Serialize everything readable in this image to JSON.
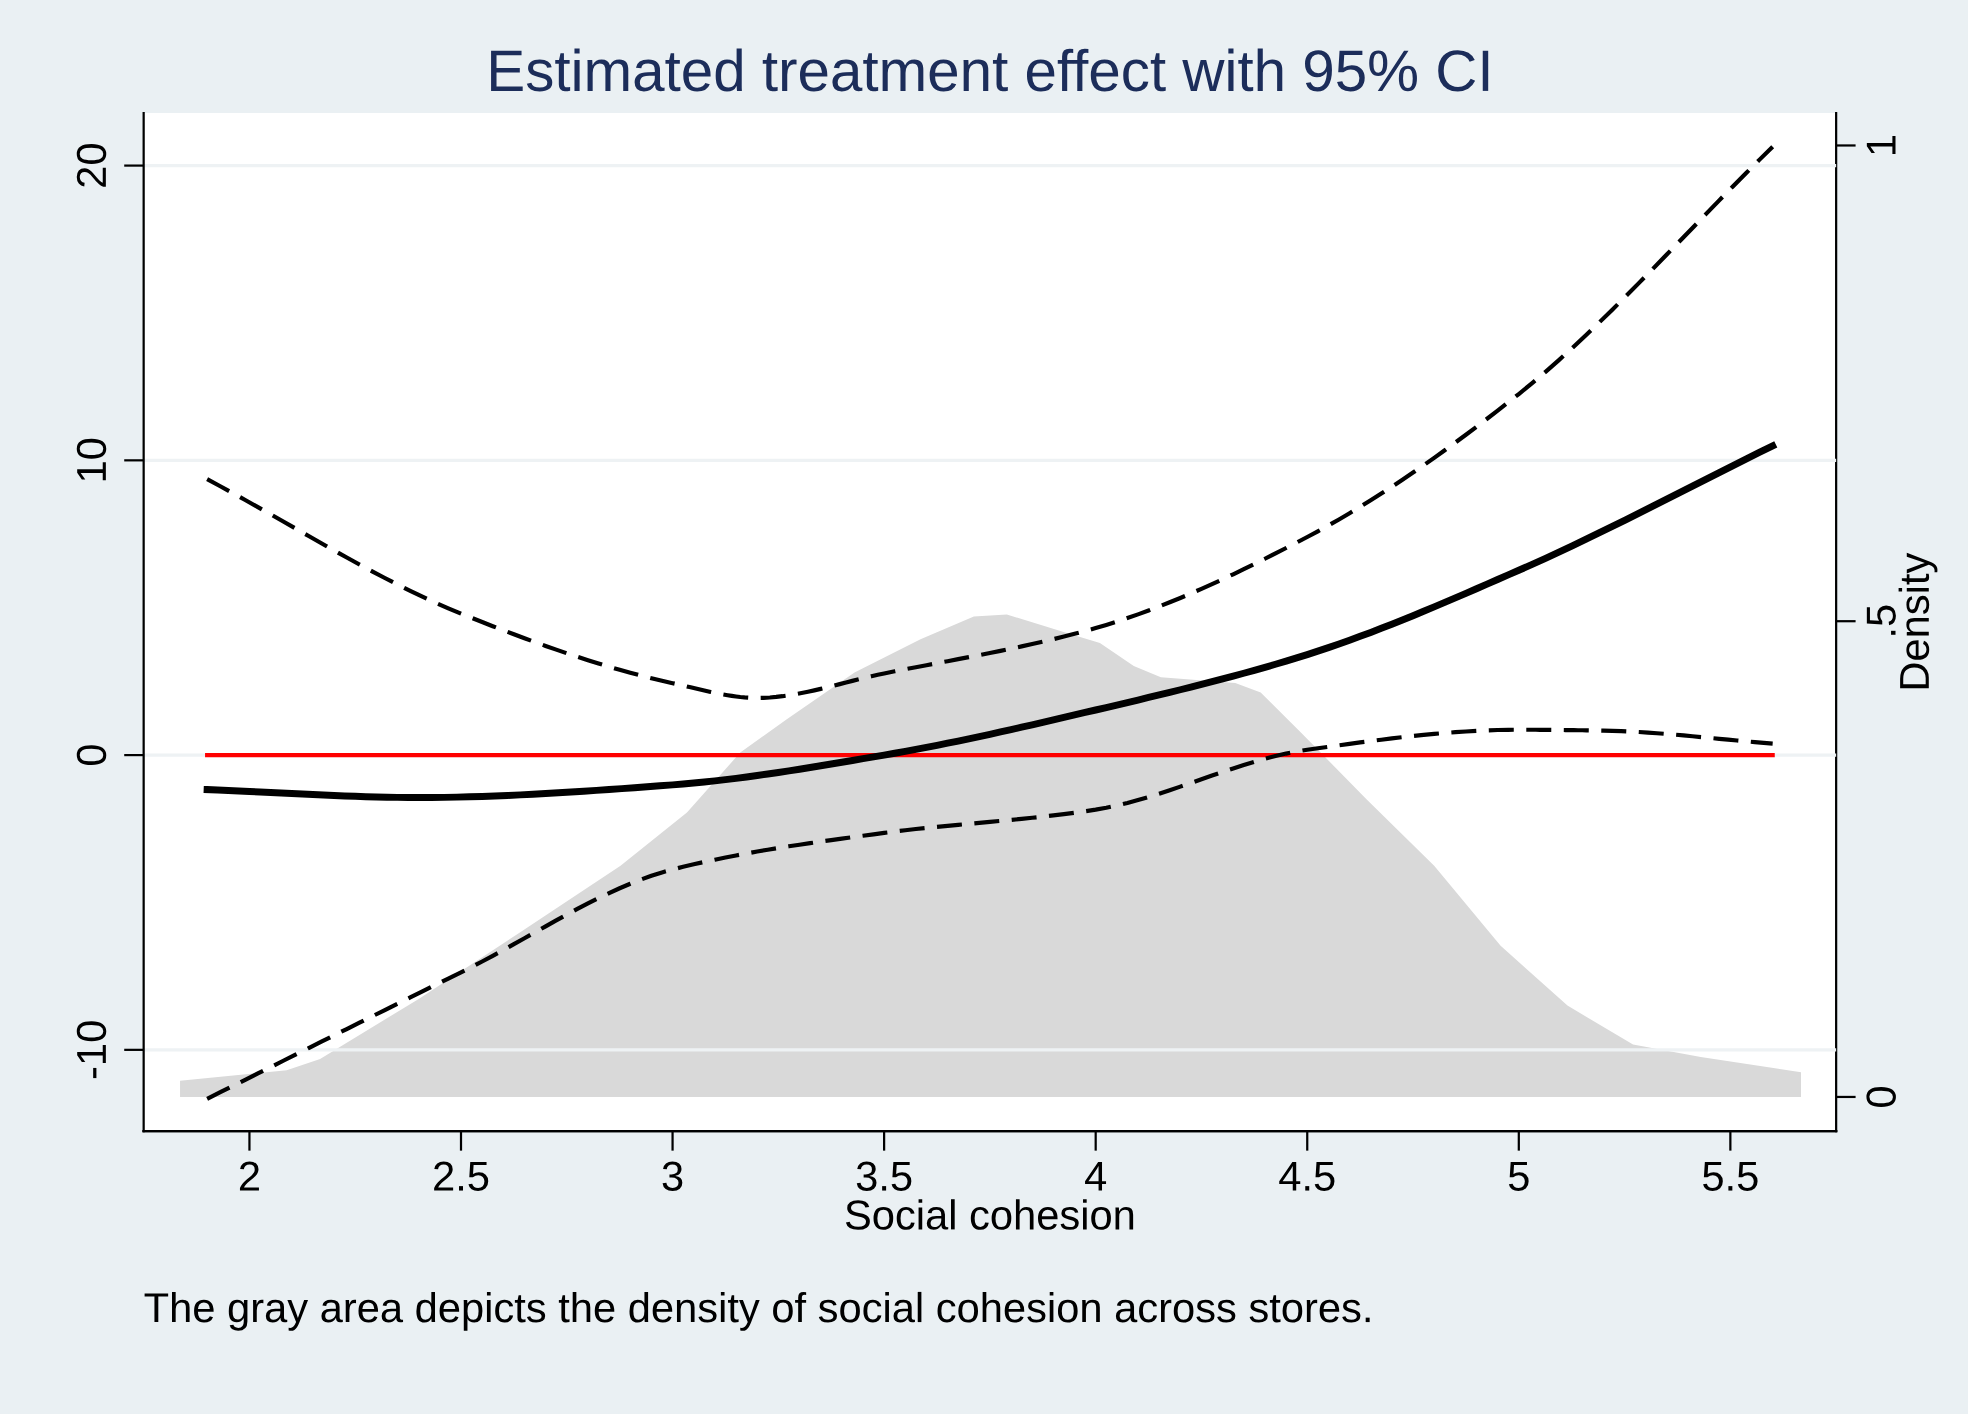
{
  "chart_data": {
    "type": "line",
    "title": "Estimated treatment effect with 95% CI",
    "xlabel": "Social cohesion",
    "y2label": "Density",
    "annotations": [
      "The gray area depicts the density of social cohesion across stores."
    ],
    "xlim": [
      1.75,
      5.75
    ],
    "xticks": [
      2,
      2.5,
      3,
      3.5,
      4,
      4.5,
      5,
      5.5
    ],
    "ylim": [
      -12.76,
      21.78
    ],
    "yticks": [
      -10,
      0,
      10,
      20
    ],
    "y2lim": [
      -0.036,
      1.034
    ],
    "y2ticks": [
      0,
      {
        "value": 0.5,
        "label": ".5"
      },
      1
    ],
    "grid": "y",
    "legend": false,
    "series": [
      {
        "type": "area",
        "axis": "y2",
        "color": "#d9d9d9",
        "x": [
          1.836,
          2.088,
          2.167,
          2.4,
          2.64,
          2.877,
          3.034,
          3.16,
          3.27,
          3.43,
          3.586,
          3.712,
          3.79,
          3.93,
          4.01,
          4.09,
          4.154,
          4.33,
          4.39,
          4.485,
          4.64,
          4.8,
          4.957,
          5.115,
          5.27,
          5.43,
          5.667
        ],
        "values": [
          0.017,
          0.028,
          0.04,
          0.103,
          0.173,
          0.243,
          0.299,
          0.362,
          0.397,
          0.446,
          0.481,
          0.505,
          0.507,
          0.488,
          0.477,
          0.453,
          0.441,
          0.435,
          0.425,
          0.383,
          0.313,
          0.243,
          0.159,
          0.096,
          0.055,
          0.042,
          0.026
        ]
      },
      {
        "type": "line",
        "color": "#ff0000",
        "line_style": "solid",
        "x": [
          1.9,
          5.6
        ],
        "values": [
          0,
          0
        ]
      },
      {
        "type": "line",
        "color": "#000000",
        "line_style": "dashed",
        "x": [
          1.9,
          2.5,
          3.0,
          3.2,
          3.5,
          4.0,
          4.5,
          5.0,
          5.6
        ],
        "values": [
          9.36,
          4.8,
          2.44,
          1.94,
          2.77,
          4.31,
          7.4,
          12.25,
          20.64
        ]
      },
      {
        "type": "line",
        "color": "#000000",
        "line_style": "dashed",
        "x": [
          1.9,
          2.5,
          3.0,
          3.5,
          4.0,
          4.5,
          5.0,
          5.2,
          5.6
        ],
        "values": [
          -11.66,
          -7.37,
          -3.88,
          -2.64,
          -1.85,
          0.18,
          0.86,
          0.83,
          0.39
        ]
      },
      {
        "color": "#000000",
        "line_style": "solid",
        "x": [
          1.9,
          2.4,
          3.0,
          3.5,
          4.0,
          4.5,
          5.0,
          5.6
        ],
        "values": [
          -1.17,
          -1.44,
          -1.01,
          0,
          1.53,
          3.41,
          6.27,
          10.49
        ]
      }
    ]
  }
}
